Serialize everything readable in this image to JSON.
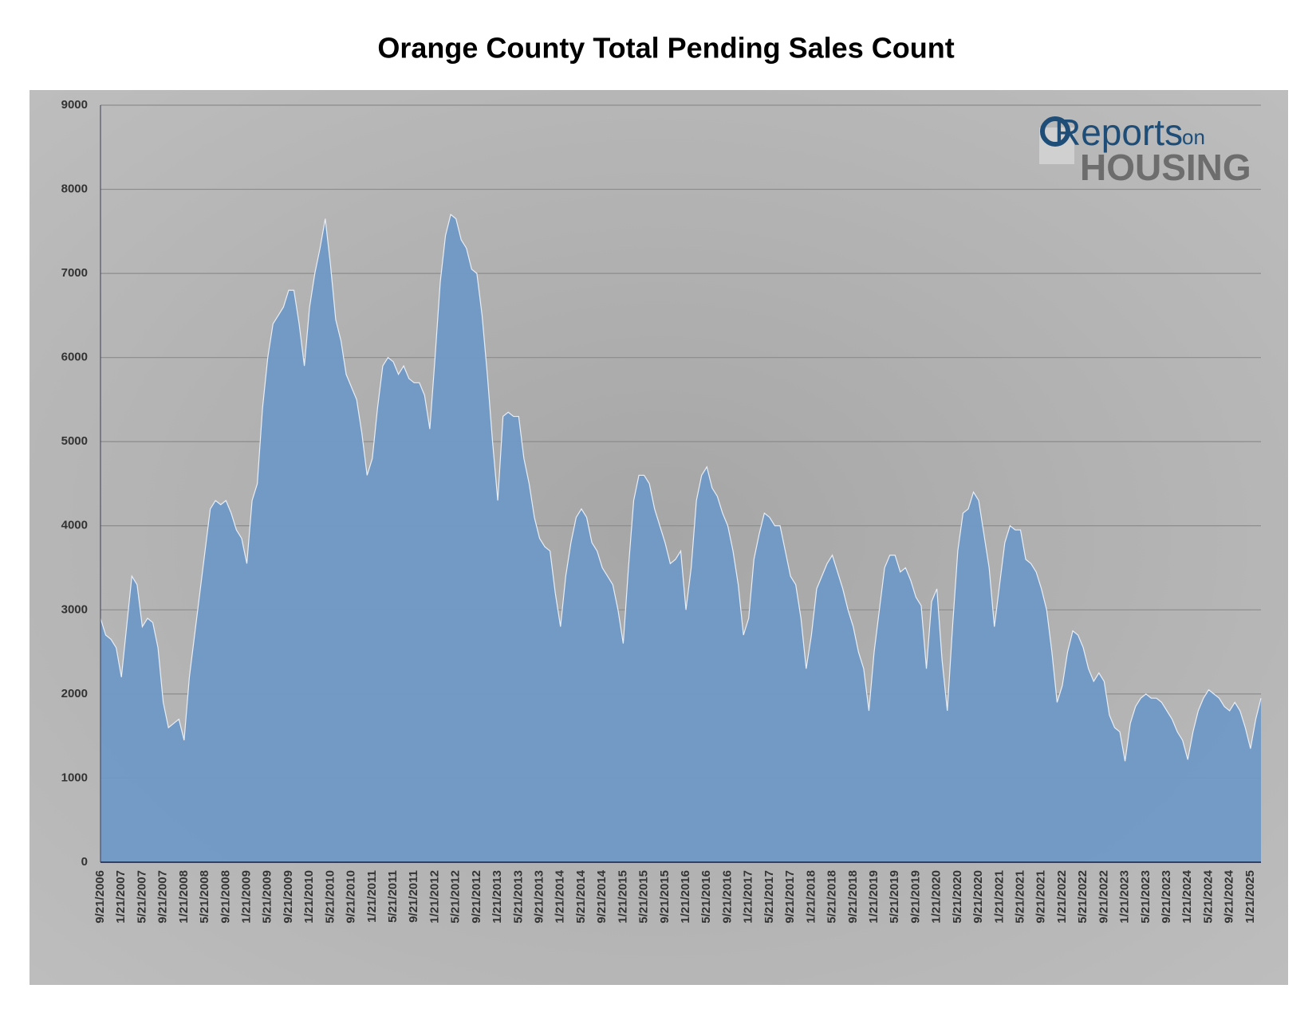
{
  "chart_data": {
    "type": "area",
    "title": "Orange County Total Pending Sales Count",
    "categories": [
      "9/21/2006",
      null,
      null,
      null,
      "1/21/2007",
      null,
      null,
      null,
      "5/21/2007",
      null,
      null,
      null,
      "9/21/2007",
      null,
      null,
      null,
      "1/21/2008",
      null,
      null,
      null,
      "5/21/2008",
      null,
      null,
      null,
      "9/21/2008",
      null,
      null,
      null,
      "1/21/2009",
      null,
      null,
      null,
      "5/21/2009",
      null,
      null,
      null,
      "9/21/2009",
      null,
      null,
      null,
      "1/21/2010",
      null,
      null,
      null,
      "5/21/2010",
      null,
      null,
      null,
      "9/21/2010",
      null,
      null,
      null,
      "1/21/2011",
      null,
      null,
      null,
      "5/21/2011",
      null,
      null,
      null,
      "9/21/2011",
      null,
      null,
      null,
      "1/21/2012",
      null,
      null,
      null,
      "5/21/2012",
      null,
      null,
      null,
      "9/21/2012",
      null,
      null,
      null,
      "1/21/2013",
      null,
      null,
      null,
      "5/21/2013",
      null,
      null,
      null,
      "9/21/2013",
      null,
      null,
      null,
      "1/21/2014",
      null,
      null,
      null,
      "5/21/2014",
      null,
      null,
      null,
      "9/21/2014",
      null,
      null,
      null,
      "1/21/2015",
      null,
      null,
      null,
      "5/21/2015",
      null,
      null,
      null,
      "9/21/2015",
      null,
      null,
      null,
      "1/21/2016",
      null,
      null,
      null,
      "5/21/2016",
      null,
      null,
      null,
      "9/21/2016",
      null,
      null,
      null,
      "1/21/2017",
      null,
      null,
      null,
      "5/21/2017",
      null,
      null,
      null,
      "9/21/2017",
      null,
      null,
      null,
      "1/21/2018",
      null,
      null,
      null,
      "5/21/2018",
      null,
      null,
      null,
      "9/21/2018",
      null,
      null,
      null,
      "1/21/2019",
      null,
      null,
      null,
      "5/21/2019",
      null,
      null,
      null,
      "9/21/2019",
      null,
      null,
      null,
      "1/21/2020",
      null,
      null,
      null,
      "5/21/2020",
      null,
      null,
      null,
      "9/21/2020",
      null,
      null,
      null,
      "1/21/2021",
      null,
      null,
      null,
      "5/21/2021",
      null,
      null,
      null,
      "9/21/2021",
      null,
      null,
      null,
      "1/21/2022",
      null,
      null,
      null,
      "5/21/2022",
      null,
      null,
      null,
      "9/21/2022",
      null,
      null,
      null,
      "1/21/2023",
      null,
      null,
      null,
      "5/21/2023",
      null,
      null,
      null,
      "9/21/2023",
      null,
      null,
      null,
      "1/21/2024",
      null,
      null,
      null,
      "5/21/2024",
      null,
      null,
      null,
      "9/21/2024",
      null,
      null,
      null,
      "1/21/2025",
      null,
      null
    ],
    "values": [
      2900,
      2700,
      2650,
      2550,
      2200,
      2800,
      3400,
      3300,
      2800,
      2900,
      2850,
      2550,
      1900,
      1600,
      1650,
      1700,
      1450,
      2200,
      2700,
      3200,
      3700,
      4200,
      4300,
      4250,
      4300,
      4150,
      3950,
      3850,
      3550,
      4300,
      4500,
      5400,
      6000,
      6400,
      6500,
      6600,
      6800,
      6800,
      6400,
      5900,
      6600,
      7000,
      7300,
      7650,
      7100,
      6450,
      6200,
      5800,
      5650,
      5500,
      5100,
      4600,
      4800,
      5400,
      5900,
      6000,
      5950,
      5800,
      5900,
      5750,
      5700,
      5700,
      5550,
      5150,
      6000,
      6900,
      7450,
      7700,
      7650,
      7400,
      7300,
      7050,
      7000,
      6500,
      5800,
      5000,
      4300,
      5300,
      5350,
      5300,
      5300,
      4800,
      4500,
      4100,
      3850,
      3750,
      3700,
      3200,
      2800,
      3400,
      3800,
      4100,
      4200,
      4100,
      3800,
      3700,
      3500,
      3400,
      3300,
      3000,
      2600,
      3500,
      4300,
      4600,
      4600,
      4500,
      4200,
      4000,
      3800,
      3550,
      3600,
      3700,
      3000,
      3500,
      4300,
      4600,
      4700,
      4450,
      4350,
      4150,
      4000,
      3700,
      3300,
      2700,
      2900,
      3600,
      3900,
      4150,
      4100,
      4000,
      4000,
      3700,
      3400,
      3300,
      2900,
      2300,
      2700,
      3250,
      3400,
      3550,
      3650,
      3450,
      3250,
      3000,
      2800,
      2500,
      2300,
      1800,
      2500,
      3000,
      3500,
      3650,
      3650,
      3450,
      3500,
      3350,
      3150,
      3050,
      2300,
      3100,
      3250,
      2400,
      1800,
      2800,
      3700,
      4150,
      4200,
      4400,
      4300,
      3900,
      3500,
      2800,
      3300,
      3800,
      4000,
      3950,
      3950,
      3600,
      3550,
      3450,
      3250,
      3000,
      2500,
      1900,
      2100,
      2500,
      2750,
      2700,
      2550,
      2300,
      2150,
      2250,
      2150,
      1750,
      1600,
      1550,
      1200,
      1650,
      1850,
      1950,
      2000,
      1950,
      1950,
      1900,
      1800,
      1700,
      1550,
      1450,
      1220,
      1550,
      1800,
      1950,
      2050,
      2000,
      1950,
      1850,
      1800,
      1900,
      1800,
      1600,
      1350,
      1700,
      1950
    ],
    "color": "#7098c6",
    "ylim": [
      0,
      9000
    ],
    "yticks": [
      0,
      1000,
      2000,
      3000,
      4000,
      5000,
      6000,
      7000,
      8000,
      9000
    ],
    "grid": true
  },
  "logo": {
    "word1": "Reports",
    "word2": "on",
    "word3": "HOUSING"
  }
}
